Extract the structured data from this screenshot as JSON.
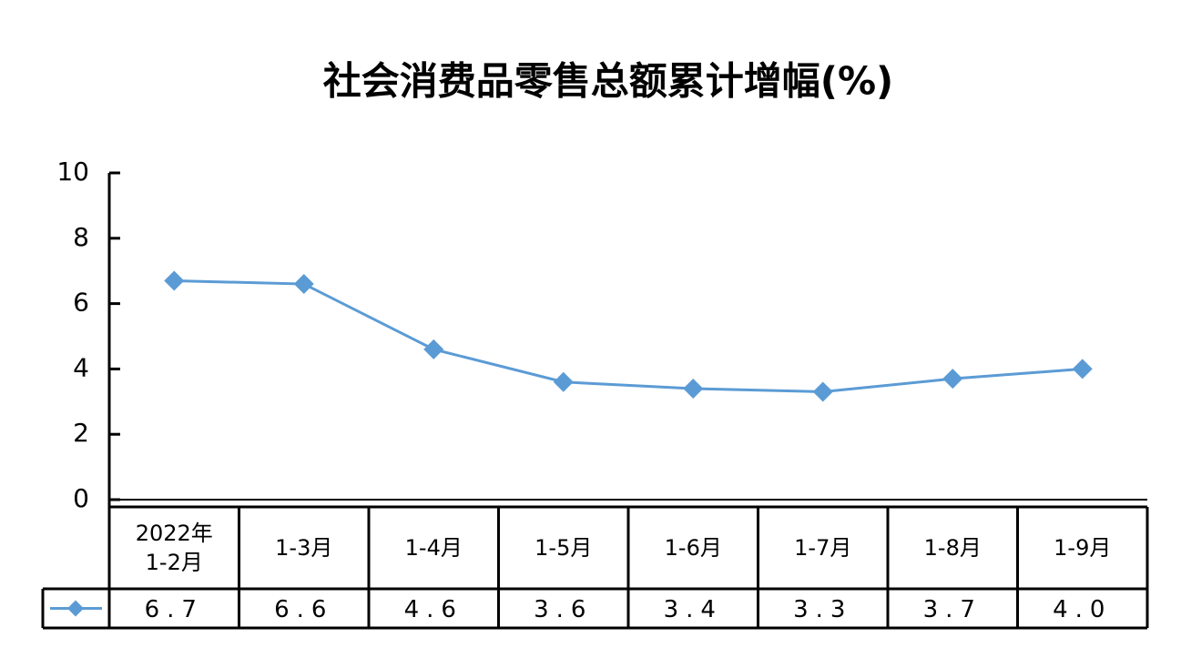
{
  "chart_data": {
    "type": "line",
    "title": "社会消费品零售总额累计增幅(%)",
    "categories": [
      "2022年\n1-2月",
      "1-3月",
      "1-4月",
      "1-5月",
      "1-6月",
      "1-7月",
      "1-8月",
      "1-9月"
    ],
    "values": [
      6.7,
      6.6,
      4.6,
      3.6,
      3.4,
      3.3,
      3.7,
      4.0
    ],
    "value_labels": [
      "6.7",
      "6.6",
      "4.6",
      "3.6",
      "3.4",
      "3.3",
      "3.7",
      "4.0"
    ],
    "color": "#5b9bd5",
    "ylim": [
      0,
      10
    ],
    "yticks": [
      0,
      2,
      4,
      6,
      8,
      10
    ]
  }
}
